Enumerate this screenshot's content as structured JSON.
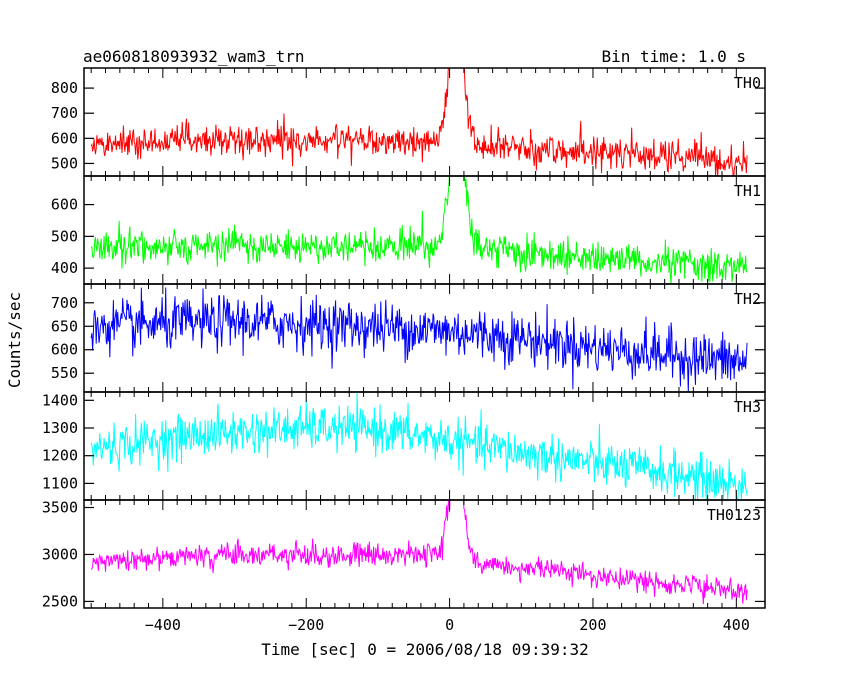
{
  "header": {
    "title": "ae060818093932_wam3_trn",
    "bin_time": "Bin time: 1.0 s"
  },
  "chart_data": {
    "type": "line",
    "xlabel": "Time [sec] 0 = 2006/08/18 09:39:32",
    "ylabel": "Counts/sec",
    "xlim": [
      -510,
      440
    ],
    "x_ticks": [
      -400,
      -200,
      0,
      200,
      400
    ],
    "x_tick_labels": [
      "−400",
      "−200",
      "0",
      "200",
      "400"
    ],
    "grid": false,
    "x_range_data": [
      -500,
      415
    ],
    "panels": [
      {
        "name": "TH0",
        "color": "#ff0000",
        "ylim": [
          450,
          880
        ],
        "y_ticks": [
          500,
          600,
          700,
          800
        ],
        "baseline": [
          [
            -500,
            580
          ],
          [
            -300,
            592
          ],
          [
            -100,
            585
          ],
          [
            -10,
            590
          ],
          [
            10,
            640
          ],
          [
            40,
            570
          ],
          [
            150,
            552
          ],
          [
            300,
            530
          ],
          [
            415,
            505
          ]
        ],
        "noise": 32,
        "spikes": [
          [
            -2,
            700
          ],
          [
            5,
            820
          ],
          [
            10,
            880
          ],
          [
            15,
            800
          ],
          [
            20,
            680
          ]
        ],
        "spike_sigma": 7
      },
      {
        "name": "TH1",
        "color": "#00ff00",
        "ylim": [
          350,
          690
        ],
        "y_ticks": [
          400,
          500,
          600
        ],
        "baseline": [
          [
            -500,
            465
          ],
          [
            -300,
            472
          ],
          [
            -100,
            468
          ],
          [
            -10,
            470
          ],
          [
            10,
            520
          ],
          [
            40,
            460
          ],
          [
            150,
            440
          ],
          [
            300,
            420
          ],
          [
            415,
            405
          ]
        ],
        "noise": 26,
        "spikes": [
          [
            -2,
            560
          ],
          [
            5,
            620
          ],
          [
            12,
            660
          ],
          [
            18,
            600
          ],
          [
            22,
            530
          ]
        ],
        "spike_sigma": 7
      },
      {
        "name": "TH2",
        "color": "#0000ff",
        "ylim": [
          510,
          740
        ],
        "y_ticks": [
          550,
          600,
          650,
          700
        ],
        "baseline": [
          [
            -500,
            648
          ],
          [
            -300,
            660
          ],
          [
            -150,
            652
          ],
          [
            0,
            640
          ],
          [
            100,
            625
          ],
          [
            200,
            605
          ],
          [
            300,
            590
          ],
          [
            415,
            572
          ]
        ],
        "noise": 28,
        "spikes": [],
        "spike_sigma": 7
      },
      {
        "name": "TH3",
        "color": "#00ffff",
        "ylim": [
          1040,
          1430
        ],
        "y_ticks": [
          1100,
          1200,
          1300,
          1400
        ],
        "baseline": [
          [
            -500,
            1225
          ],
          [
            -350,
            1275
          ],
          [
            -200,
            1300
          ],
          [
            -100,
            1295
          ],
          [
            0,
            1255
          ],
          [
            100,
            1210
          ],
          [
            200,
            1175
          ],
          [
            300,
            1140
          ],
          [
            415,
            1090
          ]
        ],
        "noise": 40,
        "spikes": [],
        "spike_sigma": 7
      },
      {
        "name": "TH0123",
        "color": "#ff00ff",
        "ylim": [
          2430,
          3580
        ],
        "y_ticks": [
          2500,
          3000,
          3500
        ],
        "baseline": [
          [
            -500,
            2920
          ],
          [
            -300,
            3000
          ],
          [
            -100,
            2995
          ],
          [
            -10,
            2990
          ],
          [
            10,
            3120
          ],
          [
            40,
            2900
          ],
          [
            150,
            2820
          ],
          [
            300,
            2700
          ],
          [
            415,
            2590
          ]
        ],
        "noise": 60,
        "spikes": [
          [
            -2,
            3250
          ],
          [
            5,
            3450
          ],
          [
            12,
            3560
          ],
          [
            18,
            3300
          ],
          [
            22,
            3050
          ]
        ],
        "spike_sigma": 7
      }
    ]
  }
}
